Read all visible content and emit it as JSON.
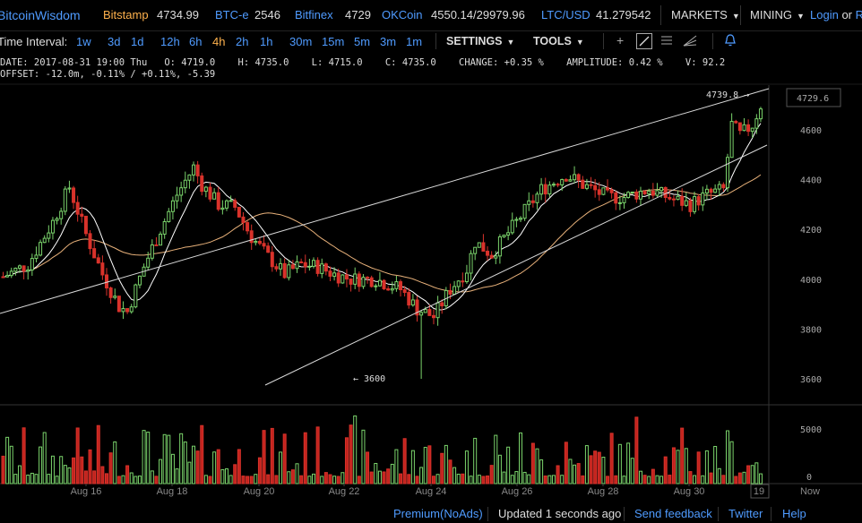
{
  "header": {
    "brand": "BitcoinWisdom",
    "exchanges": [
      {
        "name": "Bitstamp",
        "price": "4734.99",
        "color": "#ffb24d"
      },
      {
        "name": "BTC-e",
        "price": "2546",
        "color": "#4f9bff"
      },
      {
        "name": "Bitfinex",
        "price": "4729",
        "color": "#4f9bff"
      },
      {
        "name": "OKCoin",
        "price": "4550.14/29979.96",
        "color": "#4f9bff"
      },
      {
        "name": "LTC/USD",
        "price": "41.279542",
        "color": "#4f9bff"
      }
    ],
    "markets_label": "MARKETS",
    "mining_label": "MINING",
    "login_label": "Login",
    "or_label": "or",
    "register_label": "Re"
  },
  "toolbar": {
    "time_interval_label": "Time Interval:",
    "intervals": [
      "1w",
      "3d",
      "1d",
      "12h",
      "6h",
      "4h",
      "2h",
      "1h",
      "30m",
      "15m",
      "5m",
      "3m",
      "1m"
    ],
    "active_interval": "4h",
    "settings_label": "SETTINGS",
    "tools_label": "TOOLS"
  },
  "info": {
    "line1": "DATE: 2017-08-31 19:00 Thu   O: 4719.0    H: 4735.0    L: 4715.0    C: 4735.0    CHANGE: +0.35 %    AMPLITUDE: 0.42 %    V: 92.2",
    "line2": "OFFSET: -12.0m, -0.11% / +0.11%, -5.39"
  },
  "chart_data": {
    "type": "candlestick",
    "price_ticks": [
      4600,
      4400,
      4200,
      4000,
      3800,
      3600
    ],
    "volume_ticks": [
      5000,
      0
    ],
    "date_labels": [
      "Aug 16",
      "Aug 18",
      "Aug 20",
      "Aug 22",
      "Aug 24",
      "Aug 26",
      "Aug 28",
      "Aug 30",
      "19",
      "Now"
    ],
    "current_price": "4729.6",
    "high_annotation": "4739.8 →",
    "low_annotation": "← 3600",
    "colors": {
      "up": "#7ad36b",
      "down": "#d9322b",
      "ma_fast": "#ffffff",
      "ma_slow": "#e8b17a"
    }
  },
  "footer": {
    "premium": "Premium(NoAds)",
    "updated": "Updated 1 seconds ago",
    "feedback": "Send feedback",
    "twitter": "Twitter",
    "help": "Help"
  }
}
